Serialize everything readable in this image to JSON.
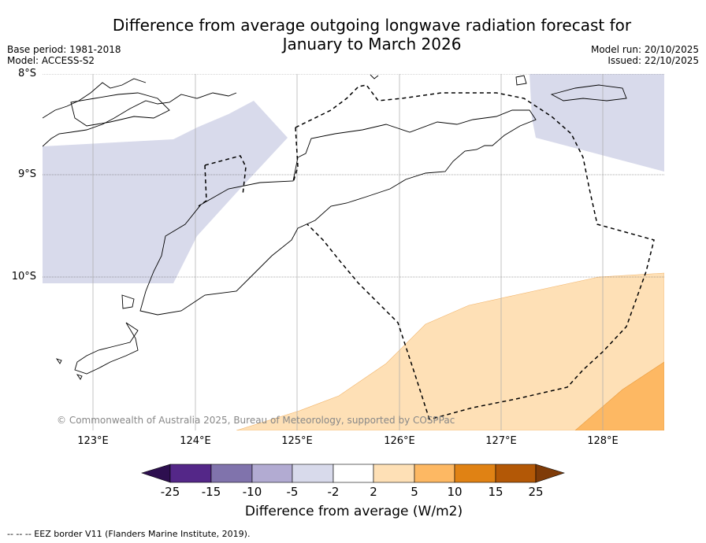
{
  "header": {
    "title": "Difference from average outgoing longwave radiation forecast for\nJanuary to March 2026",
    "base_period": "Base period: 1981-2018",
    "model": "Model: ACCESS-S2",
    "model_run": "Model run: 20/10/2025",
    "issued": "Issued: 22/10/2025"
  },
  "map": {
    "lat_labels": [
      "8°S",
      "9°S",
      "10°S"
    ],
    "lon_labels": [
      "123°E",
      "124°E",
      "125°E",
      "126°E",
      "127°E",
      "128°E"
    ],
    "credit": "© Commonwealth of Australia 2025, Bureau of Meteorology, supported by COSPPac"
  },
  "colorbar": {
    "tick_labels": [
      "-25",
      "-15",
      "-10",
      "-5",
      "-2",
      "2",
      "5",
      "10",
      "15",
      "25"
    ],
    "colors": [
      "#2d0f4f",
      "#542788",
      "#8073ac",
      "#b2abd2",
      "#d8daeb",
      "#ffffff",
      "#fee0b6",
      "#fdb863",
      "#e08214",
      "#b35806",
      "#7f3b08"
    ],
    "title": "Difference from average (W/m2)"
  },
  "legend": {
    "eez": "--  --  -- EEZ border V11 (Flanders Marine Institute, 2019)."
  }
}
